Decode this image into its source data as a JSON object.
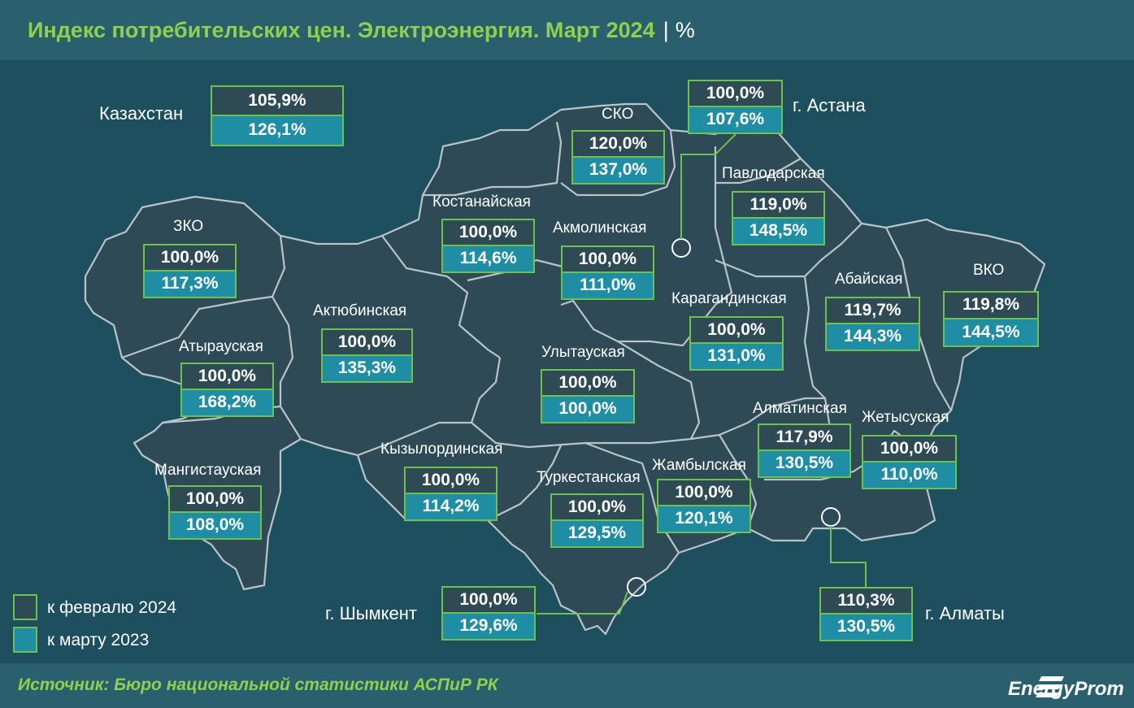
{
  "header": {
    "title": "Индекс потребительских цен. Электроэнергия. Март 2024",
    "separator": "|",
    "unit": "%"
  },
  "kazakhstan": {
    "name": "Казахстан",
    "feb": "105,9%",
    "mar": "126,1%"
  },
  "regions": [
    {
      "name": "ЗКО",
      "feb": "100,0%",
      "mar": "117,3%"
    },
    {
      "name": "Атырауская",
      "feb": "100,0%",
      "mar": "168,2%"
    },
    {
      "name": "Мангистауская",
      "feb": "100,0%",
      "mar": "108,0%"
    },
    {
      "name": "Актюбинская",
      "feb": "100,0%",
      "mar": "135,3%"
    },
    {
      "name": "Костанайская",
      "feb": "100,0%",
      "mar": "114,6%"
    },
    {
      "name": "СКО",
      "feb": "120,0%",
      "mar": "137,0%"
    },
    {
      "name": "г. Астана",
      "feb": "100,0%",
      "mar": "107,6%"
    },
    {
      "name": "Акмолинская",
      "feb": "100,0%",
      "mar": "111,0%"
    },
    {
      "name": "Павлодарская",
      "feb": "119,0%",
      "mar": "148,5%"
    },
    {
      "name": "Карагандинская",
      "feb": "100,0%",
      "mar": "131,0%"
    },
    {
      "name": "Улытауская",
      "feb": "100,0%",
      "mar": "100,0%"
    },
    {
      "name": "Абайская",
      "feb": "119,7%",
      "mar": "144,3%"
    },
    {
      "name": "ВКО",
      "feb": "119,8%",
      "mar": "144,5%"
    },
    {
      "name": "Кызылординская",
      "feb": "100,0%",
      "mar": "114,2%"
    },
    {
      "name": "Туркестанская",
      "feb": "100,0%",
      "mar": "129,5%"
    },
    {
      "name": "Жамбылская",
      "feb": "100,0%",
      "mar": "120,1%"
    },
    {
      "name": "Алматинская",
      "feb": "117,9%",
      "mar": "130,5%"
    },
    {
      "name": "Жетысуская",
      "feb": "100,0%",
      "mar": "110,0%"
    },
    {
      "name": "г. Шымкент",
      "feb": "100,0%",
      "mar": "129,6%"
    },
    {
      "name": "г. Алматы",
      "feb": "110,3%",
      "mar": "130,5%"
    }
  ],
  "legend": {
    "feb_label": "к февралю 2024",
    "mar_label": "к марту 2023"
  },
  "colors": {
    "feb_cell": "#2d4a55",
    "mar_cell": "#1f8ea5",
    "border": "#6cc24a",
    "title": "#8fd14f"
  },
  "footer": {
    "source": "Источник: Бюро национальной статистики АСПиР РК",
    "logo": "EnergyProm"
  }
}
